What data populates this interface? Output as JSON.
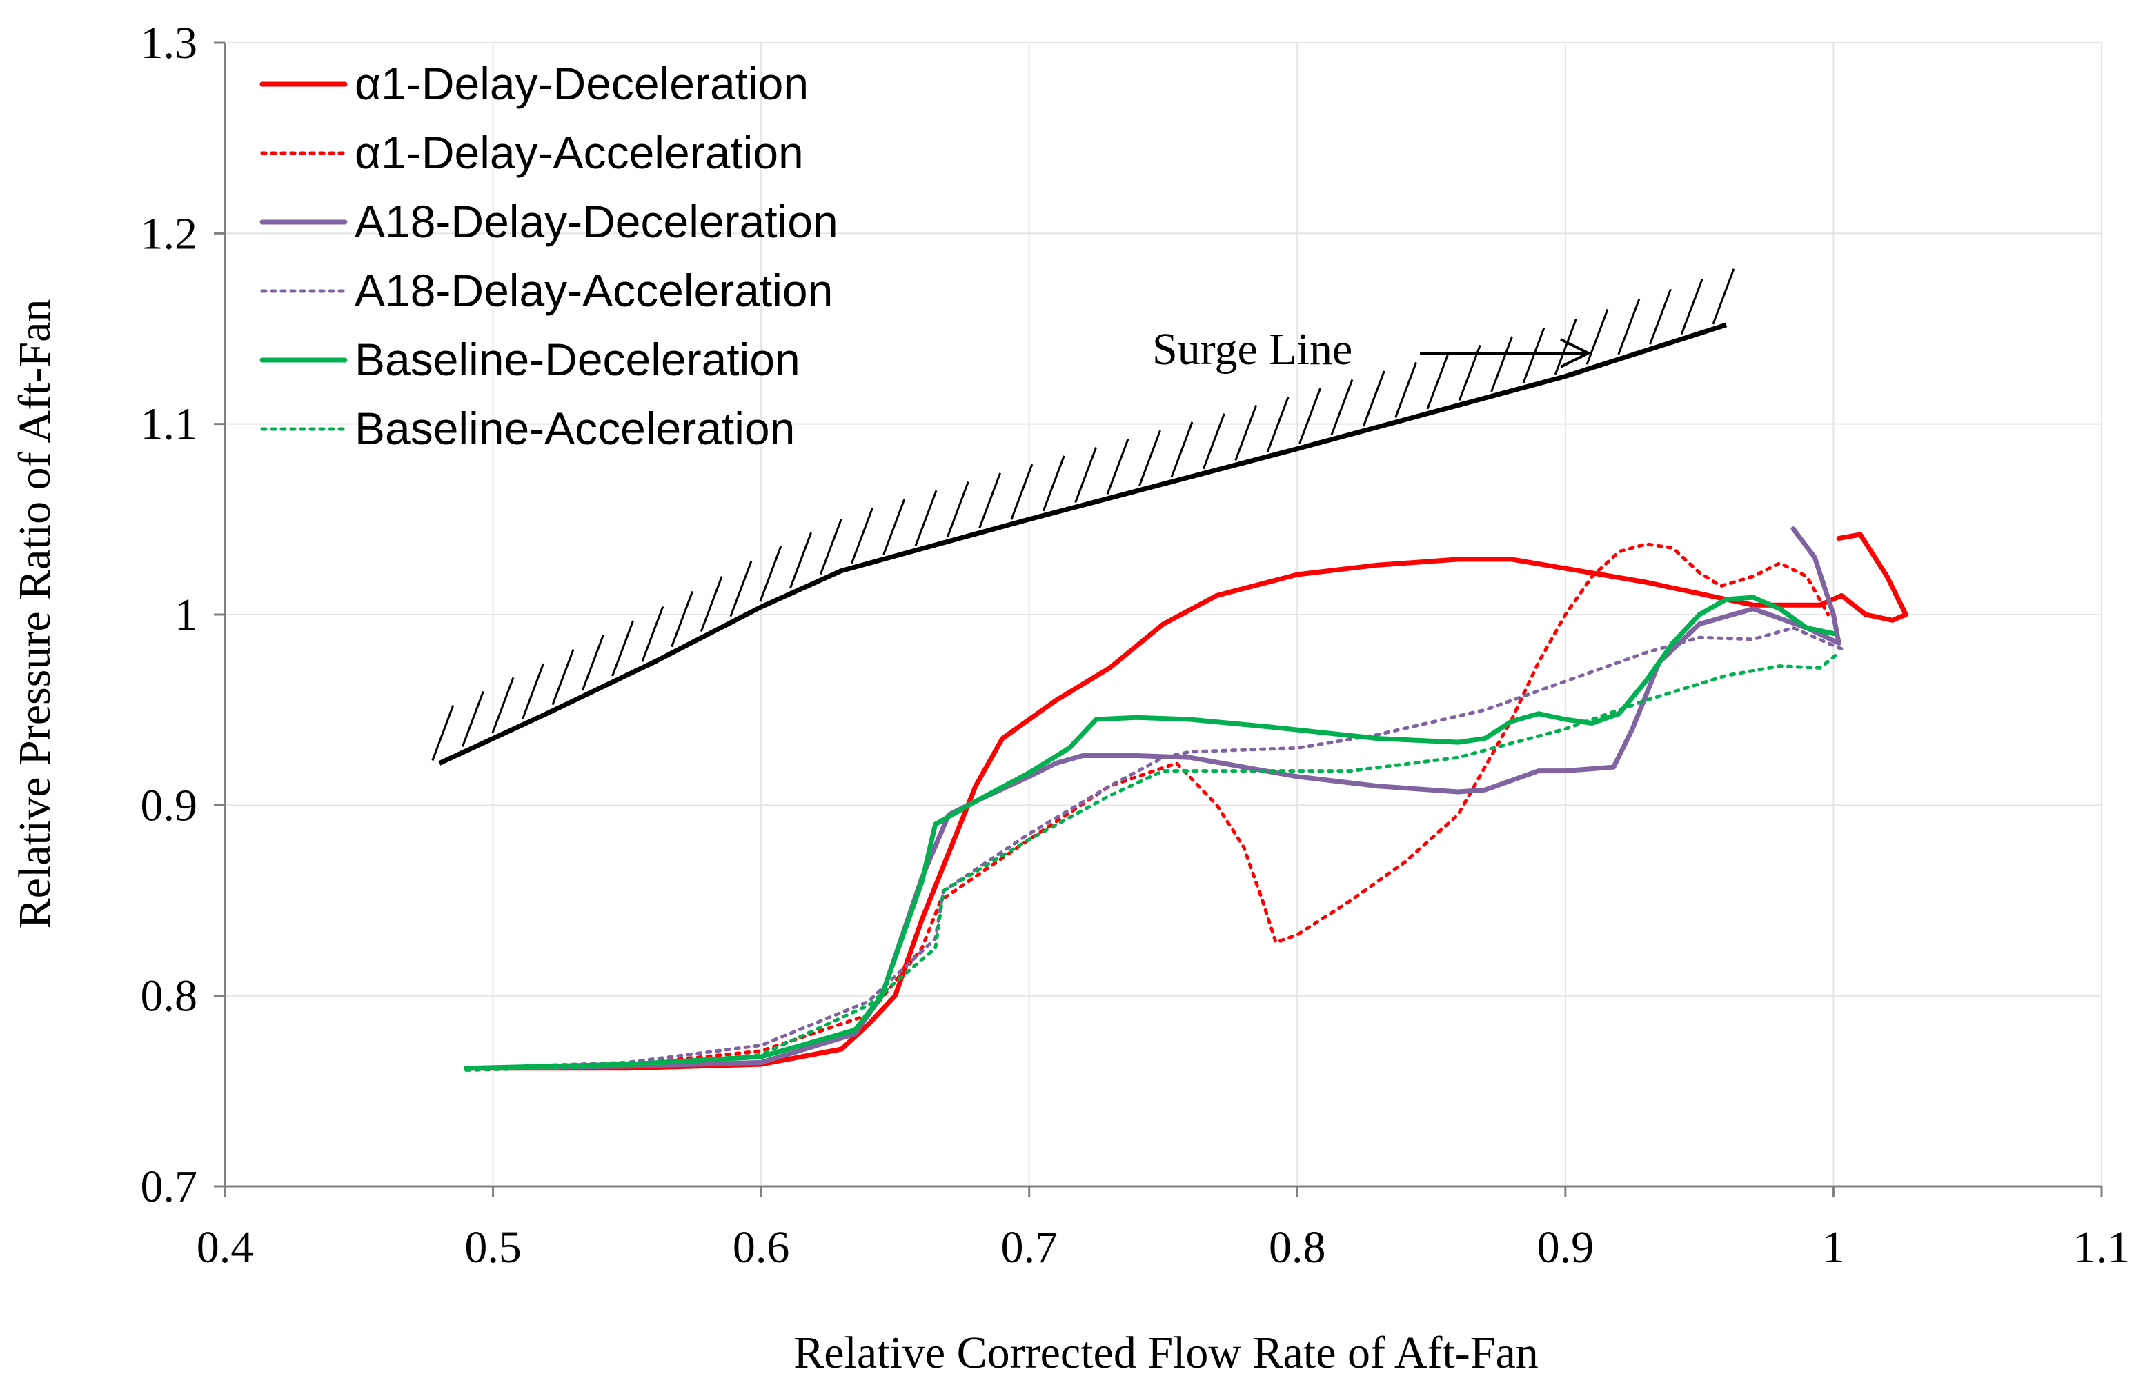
{
  "chart_data": {
    "type": "line",
    "title": "",
    "xlabel": "Relative Corrected Flow Rate of Aft-Fan",
    "ylabel": "Relative Pressure Ratio of Aft-Fan",
    "xlim": [
      0.4,
      1.1
    ],
    "ylim": [
      0.7,
      1.3
    ],
    "x_ticks": [
      0.4,
      0.5,
      0.6,
      0.7,
      0.8,
      0.9,
      1.0,
      1.1
    ],
    "x_tick_labels": [
      "0.4",
      "0.5",
      "0.6",
      "0.7",
      "0.8",
      "0.9",
      "1",
      "1.1"
    ],
    "y_ticks": [
      0.7,
      0.8,
      0.9,
      1.0,
      1.1,
      1.2,
      1.3
    ],
    "y_tick_labels": [
      "0.7",
      "0.8",
      "0.9",
      "1",
      "1.1",
      "1.2",
      "1.3"
    ],
    "grid": true,
    "legend_position": "top-left",
    "annotation": "Surge Line",
    "surge_line": [
      [
        0.48,
        0.922
      ],
      [
        0.52,
        0.948
      ],
      [
        0.56,
        0.975
      ],
      [
        0.6,
        1.004
      ],
      [
        0.63,
        1.023
      ],
      [
        0.7,
        1.05
      ],
      [
        0.8,
        1.087
      ],
      [
        0.9,
        1.125
      ],
      [
        0.96,
        1.152
      ]
    ],
    "series": [
      {
        "name": "α1-Delay-Deceleration",
        "color": "#ff0000",
        "style": "solid",
        "points": [
          [
            1.002,
            1.04
          ],
          [
            1.01,
            1.042
          ],
          [
            1.02,
            1.02
          ],
          [
            1.027,
            1.0
          ],
          [
            1.022,
            0.997
          ],
          [
            1.012,
            1.0
          ],
          [
            1.003,
            1.01
          ],
          [
            0.995,
            1.005
          ],
          [
            0.97,
            1.005
          ],
          [
            0.93,
            1.017
          ],
          [
            0.88,
            1.029
          ],
          [
            0.86,
            1.029
          ],
          [
            0.83,
            1.026
          ],
          [
            0.8,
            1.021
          ],
          [
            0.77,
            1.01
          ],
          [
            0.75,
            0.995
          ],
          [
            0.73,
            0.972
          ],
          [
            0.71,
            0.955
          ],
          [
            0.69,
            0.935
          ],
          [
            0.68,
            0.91
          ],
          [
            0.67,
            0.875
          ],
          [
            0.66,
            0.84
          ],
          [
            0.65,
            0.8
          ],
          [
            0.64,
            0.785
          ],
          [
            0.63,
            0.772
          ],
          [
            0.6,
            0.764
          ],
          [
            0.55,
            0.762
          ],
          [
            0.49,
            0.762
          ]
        ]
      },
      {
        "name": "α1-Delay-Acceleration",
        "color": "#ff0000",
        "style": "dotted",
        "points": [
          [
            0.49,
            0.762
          ],
          [
            0.55,
            0.764
          ],
          [
            0.6,
            0.771
          ],
          [
            0.64,
            0.79
          ],
          [
            0.66,
            0.825
          ],
          [
            0.667,
            0.85
          ],
          [
            0.7,
            0.882
          ],
          [
            0.73,
            0.91
          ],
          [
            0.755,
            0.922
          ],
          [
            0.77,
            0.9
          ],
          [
            0.78,
            0.878
          ],
          [
            0.787,
            0.85
          ],
          [
            0.792,
            0.828
          ],
          [
            0.8,
            0.832
          ],
          [
            0.82,
            0.85
          ],
          [
            0.84,
            0.87
          ],
          [
            0.86,
            0.895
          ],
          [
            0.87,
            0.92
          ],
          [
            0.88,
            0.945
          ],
          [
            0.89,
            0.975
          ],
          [
            0.9,
            1.0
          ],
          [
            0.91,
            1.02
          ],
          [
            0.92,
            1.033
          ],
          [
            0.93,
            1.037
          ],
          [
            0.94,
            1.035
          ],
          [
            0.95,
            1.022
          ],
          [
            0.958,
            1.015
          ],
          [
            0.97,
            1.02
          ],
          [
            0.98,
            1.027
          ],
          [
            0.99,
            1.02
          ],
          [
            0.998,
            1.0
          ]
        ]
      },
      {
        "name": "A18-Delay-Deceleration",
        "color": "#8064a2",
        "style": "solid",
        "points": [
          [
            0.985,
            1.045
          ],
          [
            0.993,
            1.03
          ],
          [
            1.0,
            1.0
          ],
          [
            1.002,
            0.985
          ],
          [
            0.99,
            0.993
          ],
          [
            0.97,
            1.003
          ],
          [
            0.95,
            0.995
          ],
          [
            0.935,
            0.975
          ],
          [
            0.925,
            0.94
          ],
          [
            0.918,
            0.92
          ],
          [
            0.9,
            0.918
          ],
          [
            0.89,
            0.918
          ],
          [
            0.87,
            0.908
          ],
          [
            0.86,
            0.907
          ],
          [
            0.83,
            0.91
          ],
          [
            0.8,
            0.915
          ],
          [
            0.78,
            0.92
          ],
          [
            0.76,
            0.925
          ],
          [
            0.74,
            0.926
          ],
          [
            0.72,
            0.926
          ],
          [
            0.71,
            0.922
          ],
          [
            0.7,
            0.915
          ],
          [
            0.68,
            0.902
          ],
          [
            0.67,
            0.895
          ],
          [
            0.66,
            0.862
          ],
          [
            0.645,
            0.8
          ],
          [
            0.635,
            0.78
          ],
          [
            0.6,
            0.765
          ],
          [
            0.55,
            0.763
          ],
          [
            0.49,
            0.762
          ]
        ]
      },
      {
        "name": "A18-Delay-Acceleration",
        "color": "#8064a2",
        "style": "dotted",
        "points": [
          [
            0.49,
            0.762
          ],
          [
            0.55,
            0.765
          ],
          [
            0.6,
            0.774
          ],
          [
            0.64,
            0.797
          ],
          [
            0.665,
            0.83
          ],
          [
            0.668,
            0.855
          ],
          [
            0.7,
            0.885
          ],
          [
            0.73,
            0.91
          ],
          [
            0.75,
            0.925
          ],
          [
            0.76,
            0.928
          ],
          [
            0.8,
            0.93
          ],
          [
            0.83,
            0.937
          ],
          [
            0.87,
            0.95
          ],
          [
            0.9,
            0.965
          ],
          [
            0.93,
            0.98
          ],
          [
            0.95,
            0.988
          ],
          [
            0.97,
            0.987
          ],
          [
            0.985,
            0.993
          ],
          [
            0.998,
            0.985
          ],
          [
            1.003,
            0.982
          ]
        ]
      },
      {
        "name": "Baseline-Deceleration",
        "color": "#00b050",
        "style": "solid",
        "points": [
          [
            1.0,
            0.99
          ],
          [
            0.99,
            0.993
          ],
          [
            0.98,
            1.003
          ],
          [
            0.97,
            1.009
          ],
          [
            0.96,
            1.008
          ],
          [
            0.95,
            1.0
          ],
          [
            0.94,
            0.985
          ],
          [
            0.93,
            0.965
          ],
          [
            0.92,
            0.948
          ],
          [
            0.91,
            0.943
          ],
          [
            0.9,
            0.945
          ],
          [
            0.89,
            0.948
          ],
          [
            0.88,
            0.944
          ],
          [
            0.87,
            0.935
          ],
          [
            0.86,
            0.933
          ],
          [
            0.83,
            0.935
          ],
          [
            0.79,
            0.941
          ],
          [
            0.76,
            0.945
          ],
          [
            0.74,
            0.946
          ],
          [
            0.725,
            0.945
          ],
          [
            0.715,
            0.93
          ],
          [
            0.7,
            0.917
          ],
          [
            0.68,
            0.902
          ],
          [
            0.665,
            0.89
          ],
          [
            0.66,
            0.86
          ],
          [
            0.645,
            0.8
          ],
          [
            0.635,
            0.782
          ],
          [
            0.6,
            0.768
          ],
          [
            0.55,
            0.764
          ],
          [
            0.49,
            0.762
          ]
        ]
      },
      {
        "name": "Baseline-Acceleration",
        "color": "#00b050",
        "style": "dotted",
        "points": [
          [
            0.49,
            0.761
          ],
          [
            0.55,
            0.763
          ],
          [
            0.6,
            0.769
          ],
          [
            0.64,
            0.795
          ],
          [
            0.665,
            0.825
          ],
          [
            0.668,
            0.855
          ],
          [
            0.7,
            0.882
          ],
          [
            0.73,
            0.905
          ],
          [
            0.75,
            0.918
          ],
          [
            0.78,
            0.918
          ],
          [
            0.82,
            0.918
          ],
          [
            0.86,
            0.925
          ],
          [
            0.9,
            0.94
          ],
          [
            0.93,
            0.955
          ],
          [
            0.96,
            0.968
          ],
          [
            0.98,
            0.973
          ],
          [
            0.995,
            0.972
          ],
          [
            1.002,
            0.98
          ]
        ]
      }
    ]
  }
}
